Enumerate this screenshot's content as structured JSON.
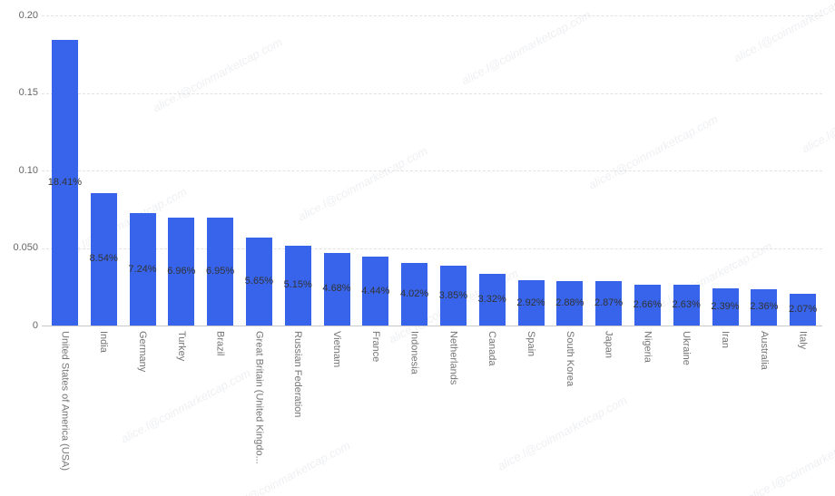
{
  "watermark": {
    "text": "alice.l@coinmarketcap.com"
  },
  "chart_data": {
    "type": "bar",
    "title": "",
    "xlabel": "",
    "ylabel": "",
    "ylim": [
      0,
      0.2
    ],
    "yticks": [
      0,
      0.05,
      0.1,
      0.15,
      0.2
    ],
    "ytick_labels": [
      "0",
      "0.050",
      "0.10",
      "0.15",
      "0.20"
    ],
    "grid": "horizontal-dashed",
    "legend": "none",
    "bar_color": "#3764EB",
    "categories": [
      "United States of America (USA)",
      "India",
      "Germany",
      "Turkey",
      "Brazil",
      "Great Britain (United Kingdo...",
      "Russian Federation",
      "Vietnam",
      "France",
      "Indonesia",
      "Netherlands",
      "Canada",
      "Spain",
      "South Korea",
      "Japan",
      "Nigeria",
      "Ukraine",
      "Iran",
      "Australia",
      "Italy"
    ],
    "values": [
      0.1841,
      0.0854,
      0.0724,
      0.0696,
      0.0695,
      0.0565,
      0.0515,
      0.0468,
      0.0444,
      0.0402,
      0.0385,
      0.0332,
      0.0292,
      0.0288,
      0.0287,
      0.0266,
      0.0263,
      0.0239,
      0.0236,
      0.0207
    ],
    "value_labels": [
      "18.41%",
      "8.54%",
      "7.24%",
      "6.96%",
      "6.95%",
      "5.65%",
      "5.15%",
      "4.68%",
      "4.44%",
      "4.02%",
      "3.85%",
      "3.32%",
      "2.92%",
      "2.88%",
      "2.87%",
      "2.66%",
      "2.63%",
      "2.39%",
      "2.36%",
      "2.07%"
    ]
  }
}
